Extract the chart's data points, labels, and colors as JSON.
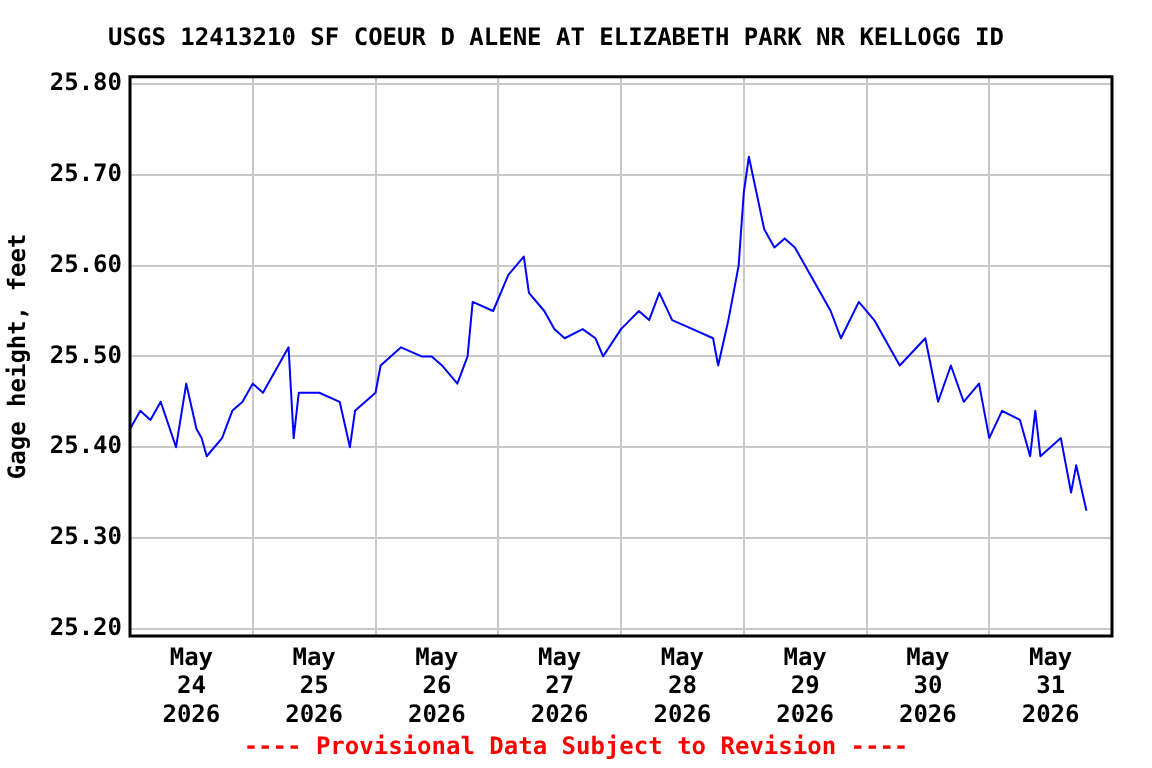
{
  "chart_data": {
    "type": "line",
    "title": "USGS 12413210 SF COEUR D ALENE AT ELIZABETH PARK NR KELLOGG ID",
    "ylabel": "Gage height, feet",
    "annotations": [
      "---- Provisional Data Subject to Revision ----"
    ],
    "x": [
      "2026-05-24T00:00",
      "2026-05-24T02:00",
      "2026-05-24T04:00",
      "2026-05-24T06:00",
      "2026-05-24T09:00",
      "2026-05-24T11:00",
      "2026-05-24T13:00",
      "2026-05-24T14:00",
      "2026-05-24T15:00",
      "2026-05-24T18:00",
      "2026-05-24T20:00",
      "2026-05-24T22:00",
      "2026-05-25T00:00",
      "2026-05-25T02:00",
      "2026-05-25T07:00",
      "2026-05-25T08:00",
      "2026-05-25T09:00",
      "2026-05-25T13:00",
      "2026-05-25T17:00",
      "2026-05-25T19:00",
      "2026-05-25T20:00",
      "2026-05-26T00:00",
      "2026-05-26T01:00",
      "2026-05-26T05:00",
      "2026-05-26T09:00",
      "2026-05-26T11:00",
      "2026-05-26T13:00",
      "2026-05-26T16:00",
      "2026-05-26T18:00",
      "2026-05-26T19:00",
      "2026-05-26T23:00",
      "2026-05-27T02:00",
      "2026-05-27T05:00",
      "2026-05-27T06:00",
      "2026-05-27T09:00",
      "2026-05-27T11:00",
      "2026-05-27T13:00",
      "2026-05-27T16:30",
      "2026-05-27T19:00",
      "2026-05-27T20:30",
      "2026-05-28T00:00",
      "2026-05-28T03:30",
      "2026-05-28T05:30",
      "2026-05-28T07:30",
      "2026-05-28T10:00",
      "2026-05-28T14:00",
      "2026-05-28T18:00",
      "2026-05-28T19:00",
      "2026-05-28T21:00",
      "2026-05-28T23:00",
      "2026-05-29T00:00",
      "2026-05-29T01:00",
      "2026-05-29T02:30",
      "2026-05-29T04:00",
      "2026-05-29T06:00",
      "2026-05-29T08:00",
      "2026-05-29T10:00",
      "2026-05-29T14:00",
      "2026-05-29T17:00",
      "2026-05-29T19:00",
      "2026-05-29T22:30",
      "2026-05-30T01:30",
      "2026-05-30T06:30",
      "2026-05-30T11:30",
      "2026-05-30T14:00",
      "2026-05-30T16:30",
      "2026-05-30T19:00",
      "2026-05-30T22:00",
      "2026-05-31T00:00",
      "2026-05-31T02:30",
      "2026-05-31T06:00",
      "2026-05-31T08:00",
      "2026-05-31T09:00",
      "2026-05-31T10:00",
      "2026-05-31T14:00",
      "2026-05-31T16:00",
      "2026-05-31T17:00",
      "2026-05-31T19:00"
    ],
    "series": [
      {
        "color": "#0000ff",
        "values": [
          25.42,
          25.44,
          25.43,
          25.45,
          25.4,
          25.47,
          25.42,
          25.41,
          25.39,
          25.41,
          25.44,
          25.45,
          25.47,
          25.46,
          25.51,
          25.41,
          25.46,
          25.46,
          25.45,
          25.4,
          25.44,
          25.46,
          25.49,
          25.51,
          25.5,
          25.5,
          25.49,
          25.47,
          25.5,
          25.56,
          25.55,
          25.59,
          25.61,
          25.57,
          25.55,
          25.53,
          25.52,
          25.53,
          25.52,
          25.5,
          25.53,
          25.55,
          25.54,
          25.57,
          25.54,
          25.53,
          25.52,
          25.49,
          25.54,
          25.6,
          25.68,
          25.72,
          25.68,
          25.64,
          25.62,
          25.63,
          25.62,
          25.58,
          25.55,
          25.52,
          25.56,
          25.54,
          25.49,
          25.52,
          25.45,
          25.49,
          25.45,
          25.47,
          25.41,
          25.44,
          25.43,
          25.39,
          25.44,
          25.39,
          25.41,
          25.35,
          25.38,
          25.33
        ]
      }
    ],
    "xlim": [
      "2026-05-24T00:00",
      "2026-06-01T00:00"
    ],
    "xticks": [
      {
        "value": "2026-05-24T12:00",
        "label": "May\n24\n2026"
      },
      {
        "value": "2026-05-25T00:00",
        "label": null
      },
      {
        "value": "2026-05-25T12:00",
        "label": "May\n25\n2026"
      },
      {
        "value": "2026-05-26T00:00",
        "label": null
      },
      {
        "value": "2026-05-26T12:00",
        "label": "May\n26\n2026"
      },
      {
        "value": "2026-05-27T00:00",
        "label": null
      },
      {
        "value": "2026-05-27T12:00",
        "label": "May\n27\n2026"
      },
      {
        "value": "2026-05-28T00:00",
        "label": null
      },
      {
        "value": "2026-05-28T12:00",
        "label": "May\n28\n2026"
      },
      {
        "value": "2026-05-29T00:00",
        "label": null
      },
      {
        "value": "2026-05-29T12:00",
        "label": "May\n29\n2026"
      },
      {
        "value": "2026-05-30T00:00",
        "label": null
      },
      {
        "value": "2026-05-30T12:00",
        "label": "May\n30\n2026"
      },
      {
        "value": "2026-05-31T00:00",
        "label": null
      },
      {
        "value": "2026-05-31T12:00",
        "label": "May\n31\n2026"
      }
    ],
    "ylim": [
      25.192,
      25.808
    ],
    "yticks": [
      {
        "value": 25.2,
        "label": "25.20"
      },
      {
        "value": 25.3,
        "label": "25.30"
      },
      {
        "value": 25.4,
        "label": "25.40"
      },
      {
        "value": 25.5,
        "label": "25.50"
      },
      {
        "value": 25.6,
        "label": "25.60"
      },
      {
        "value": 25.7,
        "label": "25.70"
      },
      {
        "value": 25.8,
        "label": "25.80"
      }
    ],
    "grid": true,
    "legend": false
  }
}
